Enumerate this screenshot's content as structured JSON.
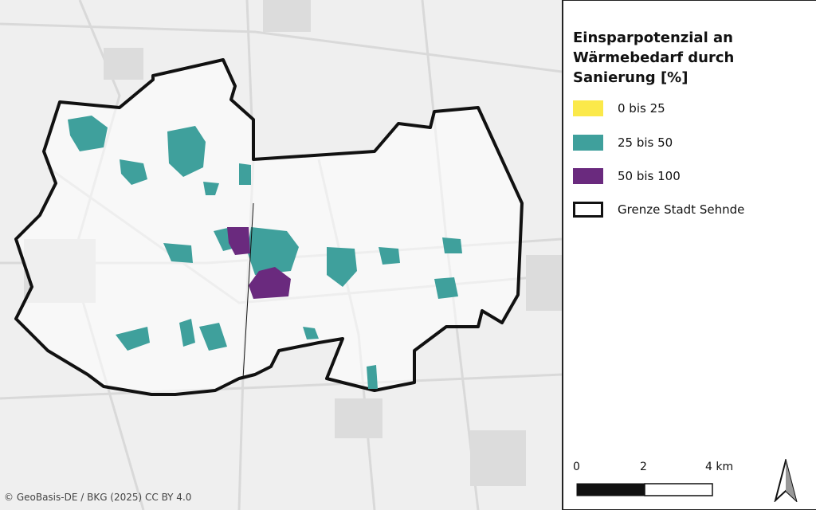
{
  "map": {
    "attribution": "© GeoBasis-DE / BKG (2025) CC BY 4.0"
  },
  "legend": {
    "title_lines": [
      "Einsparpotenzial an",
      "Wärmebedarf durch",
      "Sanierung [%]"
    ],
    "items": [
      {
        "label": "0 bis 25",
        "color": "#fbe94a"
      },
      {
        "label": "25 bis 50",
        "color": "#3fa09c"
      },
      {
        "label": "50 bis 100",
        "color": "#6a2a7e"
      },
      {
        "label": "Grenze Stadt Sehnde",
        "color": "#ffffff"
      }
    ]
  },
  "scale_bar": {
    "labels": [
      "0",
      "2",
      "4 km"
    ]
  }
}
